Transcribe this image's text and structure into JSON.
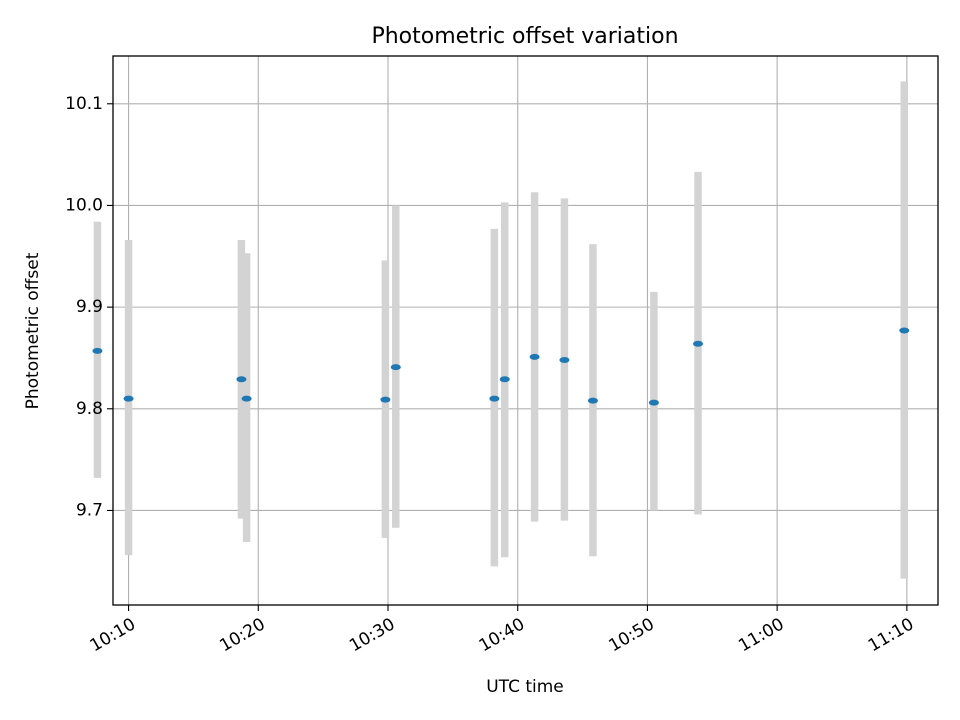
{
  "chart_data": {
    "type": "scatter",
    "title": "Photometric offset variation",
    "xlabel": "UTC time",
    "ylabel": "Photometric offset",
    "grid": true,
    "xlim_minutes": [
      608.8,
      672.4
    ],
    "ylim": [
      9.607,
      10.147
    ],
    "x_ticks": [
      {
        "label": "10:10",
        "minutes": 610
      },
      {
        "label": "10:20",
        "minutes": 620
      },
      {
        "label": "10:30",
        "minutes": 630
      },
      {
        "label": "10:40",
        "minutes": 640
      },
      {
        "label": "10:50",
        "minutes": 650
      },
      {
        "label": "11:00",
        "minutes": 660
      },
      {
        "label": "11:10",
        "minutes": 670
      }
    ],
    "y_ticks": [
      9.7,
      9.8,
      9.9,
      10.0,
      10.1
    ],
    "y_tick_labels": [
      "9.7",
      "9.8",
      "9.9",
      "10.0",
      "10.1"
    ],
    "marker_color": "#1f77b4",
    "errorbar_color": "#d3d3d3",
    "points": [
      {
        "time_minutes": 607.6,
        "y": 9.857,
        "low": 9.732,
        "high": 9.984
      },
      {
        "time_minutes": 610.0,
        "y": 9.81,
        "low": 9.656,
        "high": 9.966
      },
      {
        "time_minutes": 618.7,
        "y": 9.829,
        "low": 9.692,
        "high": 9.966
      },
      {
        "time_minutes": 619.1,
        "y": 9.81,
        "low": 9.669,
        "high": 9.953
      },
      {
        "time_minutes": 629.8,
        "y": 9.809,
        "low": 9.673,
        "high": 9.946
      },
      {
        "time_minutes": 630.6,
        "y": 9.841,
        "low": 9.683,
        "high": 10.0
      },
      {
        "time_minutes": 638.2,
        "y": 9.81,
        "low": 9.645,
        "high": 9.977
      },
      {
        "time_minutes": 639.0,
        "y": 9.829,
        "low": 9.654,
        "high": 10.003
      },
      {
        "time_minutes": 641.3,
        "y": 9.851,
        "low": 9.689,
        "high": 10.013
      },
      {
        "time_minutes": 643.6,
        "y": 9.848,
        "low": 9.69,
        "high": 10.007
      },
      {
        "time_minutes": 645.8,
        "y": 9.808,
        "low": 9.655,
        "high": 9.962
      },
      {
        "time_minutes": 650.5,
        "y": 9.806,
        "low": 9.7,
        "high": 9.915
      },
      {
        "time_minutes": 653.9,
        "y": 9.864,
        "low": 9.696,
        "high": 10.033
      },
      {
        "time_minutes": 669.8,
        "y": 9.877,
        "low": 9.633,
        "high": 10.122
      }
    ]
  }
}
